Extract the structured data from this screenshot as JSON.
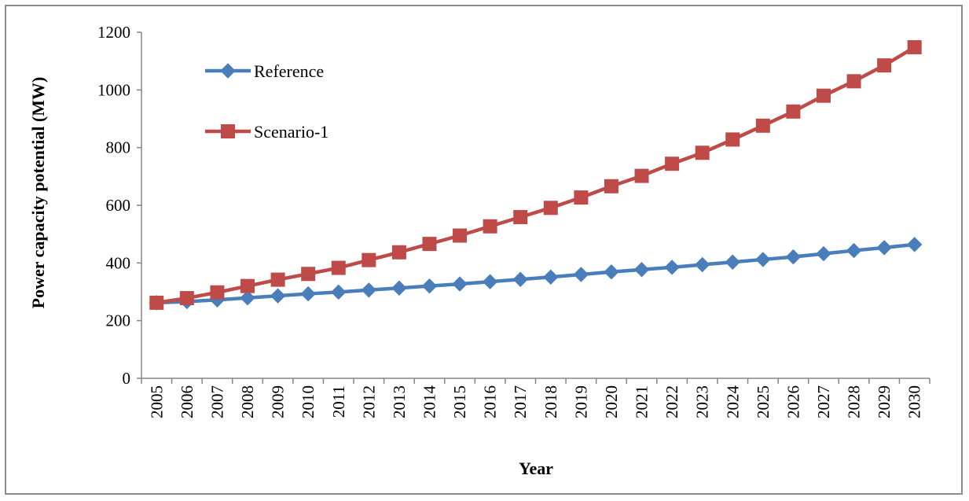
{
  "chart_data": {
    "type": "line",
    "title": "",
    "xlabel": "Year",
    "ylabel": "Power capacity potential (MW)",
    "ylim": [
      0,
      1200
    ],
    "yticks": [
      0,
      200,
      400,
      600,
      800,
      1000,
      1200
    ],
    "grid": false,
    "legend_position": "top-left",
    "categories": [
      "2005",
      "2006",
      "2007",
      "2008",
      "2009",
      "2010",
      "2011",
      "2012",
      "2013",
      "2014",
      "2015",
      "2016",
      "2017",
      "2018",
      "2019",
      "2020",
      "2021",
      "2022",
      "2023",
      "2024",
      "2025",
      "2026",
      "2027",
      "2028",
      "2029",
      "2030"
    ],
    "series": [
      {
        "name": "Reference",
        "color": "#4a7ebb",
        "marker": "diamond",
        "values": [
          262,
          266,
          272,
          279,
          286,
          293,
          299,
          306,
          313,
          320,
          327,
          335,
          343,
          351,
          360,
          369,
          377,
          385,
          394,
          403,
          412,
          421,
          432,
          443,
          453,
          464
        ]
      },
      {
        "name": "Scenario-1",
        "color": "#be4b48",
        "marker": "square",
        "values": [
          262,
          278,
          298,
          320,
          342,
          362,
          383,
          410,
          437,
          466,
          495,
          527,
          559,
          591,
          627,
          666,
          702,
          744,
          782,
          828,
          876,
          925,
          980,
          1030,
          1085,
          1148
        ]
      }
    ]
  }
}
